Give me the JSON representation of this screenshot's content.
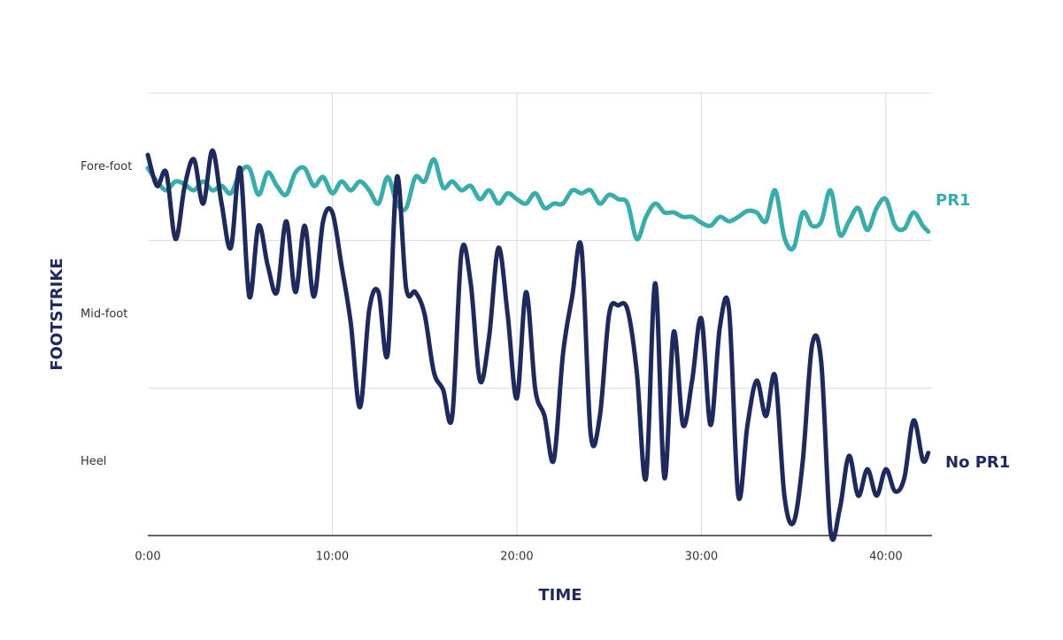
{
  "chart_data": {
    "type": "line",
    "xlabel": "TIME",
    "ylabel": "FOOTSTRIKE",
    "x": [
      0,
      0.5,
      1,
      1.5,
      2,
      2.5,
      3,
      3.5,
      4,
      4.5,
      5,
      5.5,
      6,
      6.5,
      7,
      7.5,
      8,
      8.5,
      9,
      9.5,
      10,
      10.5,
      11,
      11.5,
      12,
      12.5,
      13,
      13.5,
      14,
      14.5,
      15,
      15.5,
      16,
      16.5,
      17,
      17.5,
      18,
      18.5,
      19,
      19.5,
      20,
      20.5,
      21,
      21.5,
      22,
      22.5,
      23,
      23.5,
      24,
      24.5,
      25,
      25.5,
      26,
      26.5,
      27,
      27.5,
      28,
      28.5,
      29,
      29.5,
      30,
      30.5,
      31,
      31.5,
      32,
      32.5,
      33,
      33.5,
      34,
      34.5,
      35,
      35.5,
      36,
      36.5,
      37,
      37.5,
      38,
      38.5,
      39,
      39.5,
      40,
      40.5,
      41,
      41.5,
      42,
      42.3
    ],
    "series": [
      {
        "name": "PR1",
        "color": "#3aacab",
        "values": [
          2.49,
          2.4,
          2.34,
          2.4,
          2.38,
          2.34,
          2.4,
          2.34,
          2.37,
          2.32,
          2.46,
          2.49,
          2.31,
          2.46,
          2.37,
          2.31,
          2.46,
          2.49,
          2.37,
          2.43,
          2.32,
          2.4,
          2.34,
          2.4,
          2.34,
          2.25,
          2.43,
          2.25,
          2.22,
          2.43,
          2.4,
          2.55,
          2.36,
          2.4,
          2.34,
          2.37,
          2.28,
          2.34,
          2.25,
          2.32,
          2.28,
          2.25,
          2.32,
          2.22,
          2.25,
          2.25,
          2.34,
          2.32,
          2.34,
          2.25,
          2.31,
          2.28,
          2.25,
          2.01,
          2.16,
          2.25,
          2.19,
          2.19,
          2.16,
          2.16,
          2.12,
          2.1,
          2.16,
          2.13,
          2.16,
          2.2,
          2.19,
          2.13,
          2.34,
          2.02,
          1.95,
          2.19,
          2.1,
          2.13,
          2.34,
          2.04,
          2.13,
          2.22,
          2.07,
          2.22,
          2.28,
          2.1,
          2.08,
          2.19,
          2.1,
          2.06
        ]
      },
      {
        "name": "No PR1",
        "color": "#1f2a5c",
        "values": [
          2.58,
          2.37,
          2.46,
          2.01,
          2.37,
          2.55,
          2.25,
          2.61,
          2.25,
          1.95,
          2.49,
          1.62,
          2.1,
          1.83,
          1.65,
          2.13,
          1.65,
          2.1,
          1.62,
          2.13,
          2.19,
          1.83,
          1.44,
          0.87,
          1.53,
          1.65,
          1.23,
          2.43,
          1.68,
          1.65,
          1.5,
          1.11,
          0.99,
          0.81,
          1.92,
          1.71,
          1.05,
          1.35,
          1.95,
          1.5,
          0.93,
          1.65,
          0.99,
          0.81,
          0.51,
          1.23,
          1.62,
          1.95,
          0.69,
          0.81,
          1.5,
          1.56,
          1.53,
          1.11,
          0.39,
          1.71,
          0.39,
          1.38,
          0.75,
          1.05,
          1.47,
          0.75,
          1.41,
          1.53,
          0.27,
          0.75,
          1.05,
          0.81,
          1.08,
          0.27,
          0.09,
          0.51,
          1.29,
          1.17,
          0.03,
          0.18,
          0.54,
          0.27,
          0.45,
          0.27,
          0.45,
          0.3,
          0.39,
          0.78,
          0.51,
          0.56
        ]
      }
    ],
    "xlim": [
      0,
      42.5
    ],
    "xticks": [
      {
        "value": 0,
        "label": "0:00"
      },
      {
        "value": 10,
        "label": "10:00"
      },
      {
        "value": 20,
        "label": "20:00"
      },
      {
        "value": 30,
        "label": "30:00"
      },
      {
        "value": 40,
        "label": "40:00"
      }
    ],
    "ylim": [
      0,
      3
    ],
    "yticks": [
      {
        "value": 2.5,
        "label": "Fore-foot"
      },
      {
        "value": 1.5,
        "label": "Mid-foot"
      },
      {
        "value": 0.5,
        "label": "Heel"
      }
    ],
    "ygrid": [
      0,
      1,
      2,
      3
    ],
    "grid": true
  }
}
